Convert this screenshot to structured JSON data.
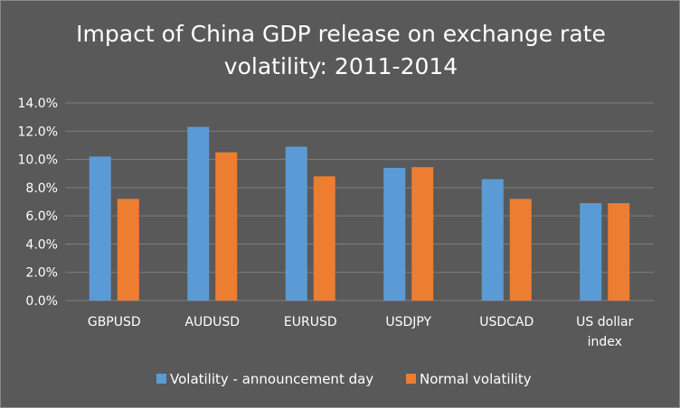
{
  "chart_data": {
    "type": "bar",
    "title_lines": [
      "Impact of China GDP release on exchange rate",
      "volatility: 2011-2014"
    ],
    "categories": [
      {
        "lines": [
          "GBPUSD"
        ]
      },
      {
        "lines": [
          "AUDUSD"
        ]
      },
      {
        "lines": [
          "EURUSD"
        ]
      },
      {
        "lines": [
          "USDJPY"
        ]
      },
      {
        "lines": [
          "USDCAD"
        ]
      },
      {
        "lines": [
          "US dollar",
          "index"
        ]
      }
    ],
    "series": [
      {
        "name": "Volatility - announcement day",
        "color": "#5b9bd5",
        "values": [
          10.2,
          12.3,
          10.9,
          9.4,
          8.6,
          6.9
        ]
      },
      {
        "name": "Normal volatility",
        "color": "#ed7d31",
        "values": [
          7.2,
          10.5,
          8.8,
          9.45,
          7.2,
          6.9
        ]
      }
    ],
    "ylim": [
      0,
      14
    ],
    "ytick_step": 2,
    "ytick_labels": [
      "0.0%",
      "2.0%",
      "4.0%",
      "6.0%",
      "8.0%",
      "10.0%",
      "12.0%",
      "14.0%"
    ],
    "xlabel": "",
    "ylabel": "",
    "grid": true,
    "legend_position": "bottom"
  },
  "colors": {
    "background": "#595959",
    "grid": "#7f7f7f",
    "text": "#ffffff"
  }
}
